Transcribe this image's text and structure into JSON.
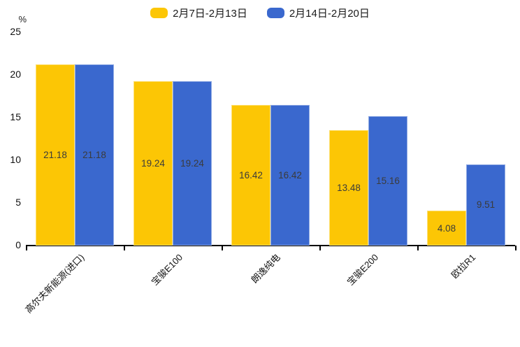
{
  "chart_data": {
    "type": "bar",
    "title": "",
    "unit_label": "%",
    "categories": [
      "高尔夫新能源(进口)",
      "宝骏E100",
      "朗逸纯电",
      "宝骏E200",
      "欧拉R1"
    ],
    "series": [
      {
        "name": "2月7日-2月13日",
        "color": "#FCC605",
        "values": [
          21.18,
          19.24,
          16.42,
          13.48,
          4.08
        ]
      },
      {
        "name": "2月14日-2月20日",
        "color": "#3A68CE",
        "values": [
          21.18,
          19.24,
          16.42,
          15.16,
          9.51
        ]
      }
    ],
    "ylim": [
      0,
      25
    ],
    "ytick_step": 5,
    "grid": false,
    "legend_position": "top",
    "bar_label_color": "#3b3b3b",
    "axis_color": "#000000"
  }
}
